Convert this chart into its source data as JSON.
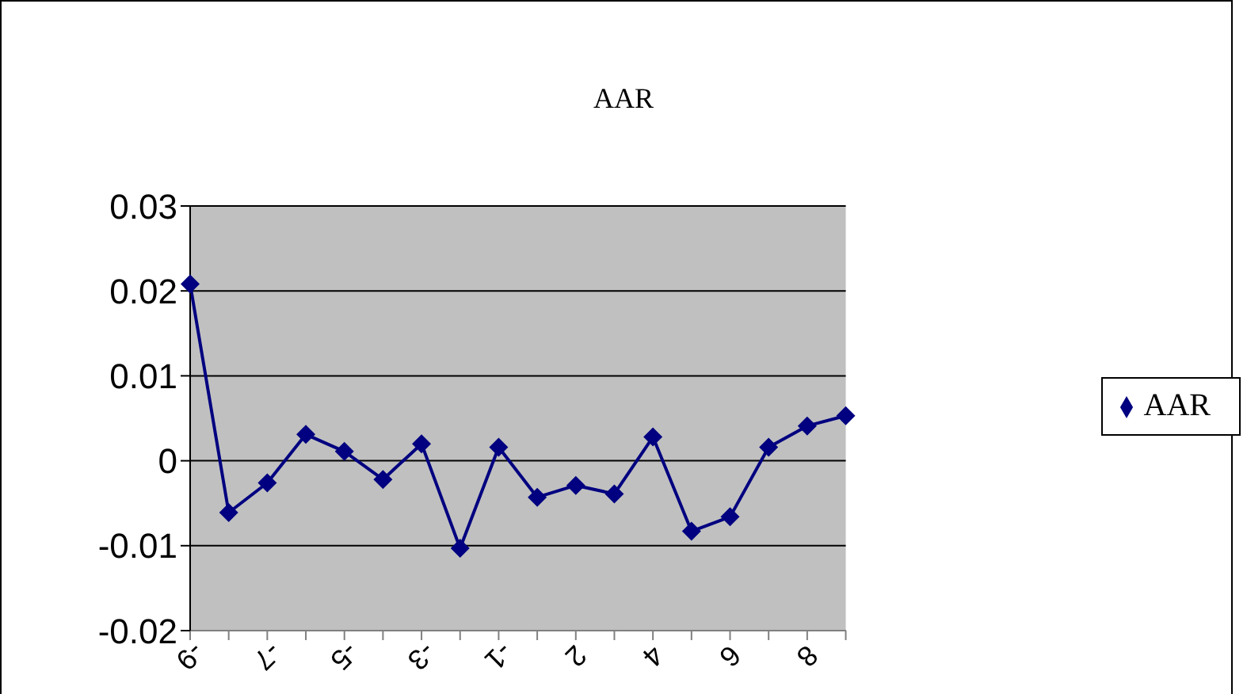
{
  "chart_data": {
    "type": "line",
    "title": "AAR",
    "categories": [
      "-9",
      null,
      "-7",
      null,
      "-5",
      null,
      "-3",
      null,
      "-1",
      null,
      "2",
      null,
      "4",
      null,
      "6",
      null,
      "8",
      null
    ],
    "series": [
      {
        "name": "AAR",
        "color": "#000080",
        "values": [
          0.0208,
          -0.0061,
          -0.0026,
          0.0031,
          0.0011,
          -0.0022,
          0.002,
          -0.0103,
          0.0016,
          -0.0043,
          -0.0029,
          -0.0039,
          0.0028,
          -0.0083,
          -0.0066,
          0.0016,
          0.0041,
          0.0053
        ]
      }
    ],
    "ylim": [
      -0.02,
      0.03
    ],
    "yticks": [
      -0.02,
      -0.01,
      0,
      0.01,
      0.02,
      0.03
    ],
    "grid": "y",
    "legend": "right",
    "marker": "diamond",
    "line_style": "solid"
  }
}
